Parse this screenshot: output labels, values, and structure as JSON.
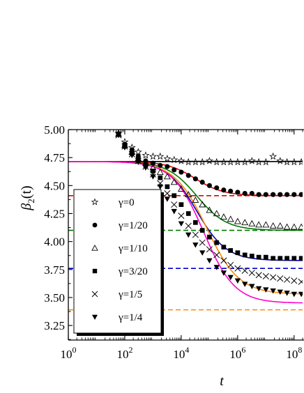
{
  "chart_data": {
    "type": "scatter",
    "xlabel": "t",
    "ylabel_main": "β",
    "ylabel_sub": "2",
    "ylabel_paren": "(t)",
    "xscale": "log",
    "xlim": [
      1,
      200000000
    ],
    "ylim": [
      3.12,
      5.0
    ],
    "xticks": [
      {
        "value": 1,
        "base": "10",
        "exp": "0"
      },
      {
        "value": 100,
        "base": "10",
        "exp": "2"
      },
      {
        "value": 10000,
        "base": "10",
        "exp": "4"
      },
      {
        "value": 1000000,
        "base": "10",
        "exp": "6"
      },
      {
        "value": 100000000,
        "base": "10",
        "exp": "8"
      }
    ],
    "yticks": [
      "3.25",
      "3.50",
      "3.75",
      "4.00",
      "4.25",
      "4.50",
      "4.75",
      "5.00"
    ],
    "grid": false,
    "legend_position": "left-inside",
    "series": [
      {
        "name": "γ=0",
        "marker": "star",
        "color": "#000000",
        "fill": "none",
        "x": [
          60,
          100,
          180,
          300,
          550,
          1000,
          1800,
          3200,
          5600,
          10000,
          18000,
          32000,
          56000,
          100000,
          180000,
          320000,
          560000,
          1000000,
          1800000,
          3200000,
          5600000,
          10000000,
          18000000,
          32000000,
          56000000,
          100000000,
          180000000
        ],
        "y": [
          4.97,
          4.89,
          4.84,
          4.8,
          4.77,
          4.76,
          4.76,
          4.74,
          4.73,
          4.72,
          4.71,
          4.71,
          4.71,
          4.72,
          4.71,
          4.71,
          4.71,
          4.71,
          4.71,
          4.72,
          4.71,
          4.71,
          4.76,
          4.72,
          4.71,
          4.71,
          4.71
        ]
      },
      {
        "name": "γ=1/20",
        "marker": "circle",
        "color": "#000000",
        "fill": "#000000",
        "x": [
          60,
          100,
          180,
          300,
          550,
          1000,
          1800,
          3200,
          5600,
          10000,
          18000,
          32000,
          56000,
          100000,
          180000,
          320000,
          560000,
          1000000,
          1800000,
          3200000,
          5600000,
          10000000,
          18000000,
          32000000,
          56000000,
          100000000,
          180000000
        ],
        "y": [
          4.96,
          4.87,
          4.82,
          4.76,
          4.72,
          4.7,
          4.68,
          4.67,
          4.64,
          4.62,
          4.59,
          4.56,
          4.53,
          4.5,
          4.48,
          4.46,
          4.45,
          4.44,
          4.43,
          4.43,
          4.42,
          4.42,
          4.42,
          4.42,
          4.42,
          4.42,
          4.42
        ]
      },
      {
        "name": "γ=1/10",
        "marker": "triangle",
        "color": "#000000",
        "fill": "none",
        "x": [
          60,
          100,
          180,
          300,
          550,
          1000,
          1800,
          3200,
          5600,
          10000,
          18000,
          32000,
          56000,
          100000,
          180000,
          320000,
          560000,
          1000000,
          1800000,
          3200000,
          5600000,
          10000000,
          18000000,
          32000000,
          56000000,
          100000000,
          180000000
        ],
        "y": [
          4.96,
          4.86,
          4.8,
          4.74,
          4.7,
          4.66,
          4.62,
          4.58,
          4.53,
          4.47,
          4.42,
          4.37,
          4.33,
          4.28,
          4.25,
          4.22,
          4.2,
          4.18,
          4.17,
          4.16,
          4.15,
          4.15,
          4.14,
          4.14,
          4.13,
          4.13,
          4.13
        ]
      },
      {
        "name": "γ=3/20",
        "marker": "square",
        "color": "#000000",
        "fill": "#000000",
        "x": [
          60,
          100,
          180,
          300,
          550,
          1000,
          1800,
          3200,
          5600,
          10000,
          18000,
          32000,
          56000,
          100000,
          180000,
          320000,
          560000,
          1000000,
          1800000,
          3200000,
          5600000,
          10000000,
          18000000,
          32000000,
          56000000,
          100000000,
          180000000
        ],
        "y": [
          4.96,
          4.85,
          4.79,
          4.73,
          4.68,
          4.63,
          4.57,
          4.49,
          4.41,
          4.33,
          4.25,
          4.17,
          4.1,
          4.04,
          3.99,
          3.95,
          3.92,
          3.9,
          3.88,
          3.87,
          3.86,
          3.86,
          3.85,
          3.85,
          3.85,
          3.85,
          3.85
        ]
      },
      {
        "name": "γ=1/5",
        "marker": "cross",
        "color": "#000000",
        "fill": "none",
        "x": [
          60,
          100,
          180,
          300,
          550,
          1000,
          1800,
          3200,
          5600,
          10000,
          18000,
          32000,
          56000,
          100000,
          180000,
          320000,
          560000,
          1000000,
          1800000,
          3200000,
          5600000,
          10000000,
          18000000,
          32000000,
          56000000,
          100000000,
          180000000
        ],
        "y": [
          4.95,
          4.85,
          4.78,
          4.72,
          4.67,
          4.6,
          4.52,
          4.43,
          4.33,
          4.23,
          4.14,
          4.06,
          3.99,
          3.93,
          3.88,
          3.83,
          3.79,
          3.76,
          3.74,
          3.72,
          3.7,
          3.69,
          3.68,
          3.67,
          3.66,
          3.65,
          3.64
        ]
      },
      {
        "name": "γ=1/4",
        "marker": "triangle-down",
        "color": "#000000",
        "fill": "#000000",
        "x": [
          60,
          100,
          180,
          300,
          550,
          1000,
          1800,
          3200,
          5600,
          10000,
          18000,
          32000,
          56000,
          100000,
          180000,
          320000,
          560000,
          1000000,
          1800000,
          3200000,
          5600000,
          10000000,
          18000000,
          32000000,
          56000000,
          100000000,
          180000000
        ],
        "y": [
          4.95,
          4.84,
          4.77,
          4.71,
          4.66,
          4.58,
          4.49,
          4.38,
          4.27,
          4.16,
          4.06,
          3.97,
          3.9,
          3.83,
          3.77,
          3.72,
          3.68,
          3.65,
          3.62,
          3.6,
          3.58,
          3.57,
          3.56,
          3.55,
          3.54,
          3.53,
          3.53
        ]
      }
    ],
    "fit_lines": [
      {
        "color": "#000000",
        "start": 4.715,
        "end": 4.715,
        "center": 4.0,
        "width": 1.0
      },
      {
        "color": "#dd0000",
        "start": 4.715,
        "end": 4.41,
        "center": 4.5,
        "width": 1.0
      },
      {
        "color": "#007700",
        "start": 4.715,
        "end": 4.1,
        "center": 4.55,
        "width": 1.05
      },
      {
        "color": "#0000cc",
        "start": 4.715,
        "end": 3.83,
        "center": 4.55,
        "width": 1.05
      },
      {
        "color": "#ff8800",
        "start": 4.715,
        "end": 3.53,
        "center": 4.9,
        "width": 1.15
      },
      {
        "color": "#ff00cc",
        "start": 4.715,
        "end": 3.45,
        "center": 4.8,
        "width": 1.1
      }
    ],
    "reference_lines": [
      {
        "y": 4.41,
        "color": "#dd0000"
      },
      {
        "y": 4.1,
        "color": "#007700"
      },
      {
        "y": 3.76,
        "color": "#0000cc"
      },
      {
        "y": 3.39,
        "color": "#ff8800"
      }
    ]
  }
}
